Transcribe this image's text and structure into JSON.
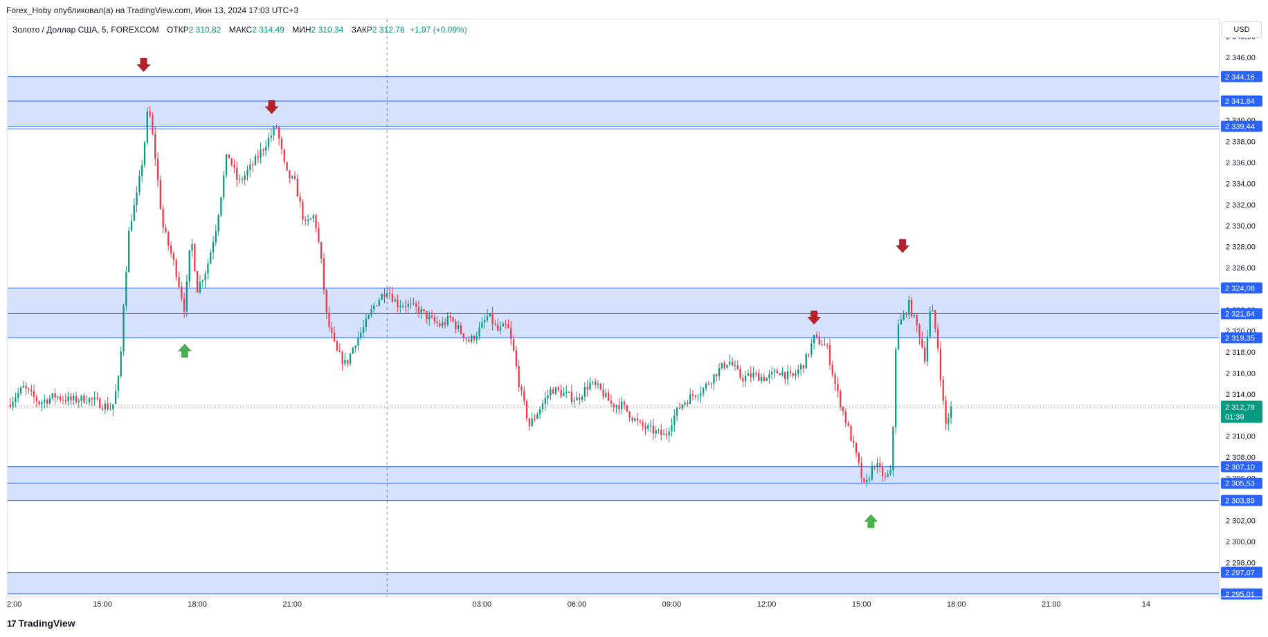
{
  "header": {
    "publisher_line": "Forex_Hoby опубликовал(а) на TradingView.com, Июн 13, 2024 17:03 UTC+3"
  },
  "legend": {
    "symbol": "Золото / Доллар США, 5, FOREXCOM",
    "open_label": "ОТКР",
    "open_value": "2 310,82",
    "high_label": "МАКС",
    "high_value": "2 314,49",
    "low_label": "МИН",
    "low_value": "2 310,34",
    "close_label": "ЗАКР",
    "close_value": "2 312,78",
    "change": "+1,97 (+0,09%)"
  },
  "price_axis": {
    "currency": "USD",
    "last_price_label": "2 312,78",
    "countdown": "01:39"
  },
  "footer": {
    "brand": "TradingView"
  },
  "colors": {
    "up": "#089981",
    "down": "#f23645",
    "zone_fill": "#d4dffd",
    "level_line": "#2962ff",
    "arrow_down": "#b2202c",
    "arrow_up": "#4caf50"
  },
  "chart_data": {
    "type": "candlestick",
    "symbol": "XAUUSD",
    "interval": "5",
    "y_ticks": [
      "2 348,00",
      "2 346,00",
      "2 340,00",
      "2 338,00",
      "2 336,00",
      "2 334,00",
      "2 332,00",
      "2 330,00",
      "2 328,00",
      "2 326,00",
      "2 322,00",
      "2 320,00",
      "2 318,00",
      "2 316,00",
      "2 314,00",
      "2 310,00",
      "2 308,00",
      "2 306,00",
      "2 302,00",
      "2 300,00",
      "2 298,00"
    ],
    "y_tick_values": [
      2348,
      2346,
      2340,
      2338,
      2336,
      2334,
      2332,
      2330,
      2328,
      2326,
      2322,
      2320,
      2318,
      2316,
      2314,
      2310,
      2308,
      2306,
      2302,
      2300,
      2298
    ],
    "ylim": [
      2294.8,
      2349.6
    ],
    "x_ticks": [
      "2:00",
      "15:00",
      "18:00",
      "21:00",
      "13",
      "03:00",
      "06:00",
      "09:00",
      "12:00",
      "15:00",
      "18:00",
      "21:00",
      "14"
    ],
    "x_tick_hours": [
      12,
      15,
      18,
      21,
      24,
      27,
      30,
      33,
      36,
      39,
      42,
      45,
      48
    ],
    "xlim": [
      12.0,
      50.3
    ],
    "zones": [
      {
        "top": 2344.16,
        "bottom": 2339.44,
        "top_label": "2 344,16",
        "mid_label": "2 341,84",
        "mid": 2341.84,
        "bottom_label": "2 339,44"
      },
      {
        "top": 2324.08,
        "bottom": 2319.35,
        "top_label": "2 324,08",
        "mid_label": "2 321,64",
        "mid": 2321.64,
        "bottom_label": "2 319,35"
      },
      {
        "top": 2307.1,
        "bottom": 2303.89,
        "top_label": "2 307,10",
        "mid_label": "2 305,53",
        "mid": 2305.53,
        "bottom_label": "2 303,89"
      },
      {
        "top": 2297.07,
        "bottom": 2295.01,
        "top_label": "2 297,07",
        "mid_label": "",
        "mid": null,
        "bottom_label": "2 295,01"
      }
    ],
    "extra_level": 2339.2,
    "last_price": 2312.78,
    "session_divider_hour": 24,
    "anchors": [
      [
        12.0,
        2313.0
      ],
      [
        12.5,
        2314.6
      ],
      [
        13.0,
        2313.2
      ],
      [
        13.5,
        2313.8
      ],
      [
        14.0,
        2313.4
      ],
      [
        14.5,
        2313.6
      ],
      [
        15.0,
        2313.0
      ],
      [
        15.3,
        2312.6
      ],
      [
        15.55,
        2316.0
      ],
      [
        15.65,
        2322.0
      ],
      [
        15.85,
        2330.0
      ],
      [
        16.1,
        2333.0
      ],
      [
        16.3,
        2337.0
      ],
      [
        16.45,
        2341.5
      ],
      [
        16.65,
        2337.0
      ],
      [
        16.9,
        2330.0
      ],
      [
        17.1,
        2328.0
      ],
      [
        17.3,
        2326.0
      ],
      [
        17.6,
        2322.0
      ],
      [
        17.8,
        2329.0
      ],
      [
        18.0,
        2324.0
      ],
      [
        18.3,
        2326.0
      ],
      [
        18.6,
        2330.0
      ],
      [
        18.95,
        2337.0
      ],
      [
        19.3,
        2334.0
      ],
      [
        19.8,
        2336.0
      ],
      [
        20.2,
        2338.0
      ],
      [
        20.5,
        2339.4
      ],
      [
        20.8,
        2335.0
      ],
      [
        21.1,
        2334.0
      ],
      [
        21.4,
        2330.0
      ],
      [
        21.7,
        2331.0
      ],
      [
        21.9,
        2327.0
      ],
      [
        22.1,
        2321.0
      ],
      [
        22.4,
        2318.0
      ],
      [
        22.7,
        2316.8
      ],
      [
        23.0,
        2319.0
      ],
      [
        23.3,
        2320.5
      ],
      [
        23.6,
        2322.5
      ],
      [
        24.0,
        2324.0
      ],
      [
        24.3,
        2322.6
      ],
      [
        24.6,
        2322.5
      ],
      [
        25.0,
        2322.0
      ],
      [
        25.4,
        2321.0
      ],
      [
        25.7,
        2320.5
      ],
      [
        26.0,
        2321.2
      ],
      [
        26.3,
        2320.0
      ],
      [
        26.6,
        2319.0
      ],
      [
        26.9,
        2320.0
      ],
      [
        27.2,
        2321.5
      ],
      [
        27.5,
        2320.0
      ],
      [
        27.8,
        2320.5
      ],
      [
        28.0,
        2318.0
      ],
      [
        28.2,
        2314.5
      ],
      [
        28.5,
        2311.0
      ],
      [
        28.8,
        2312.5
      ],
      [
        29.2,
        2314.5
      ],
      [
        29.6,
        2314.0
      ],
      [
        30.0,
        2313.5
      ],
      [
        30.4,
        2315.0
      ],
      [
        30.7,
        2314.5
      ],
      [
        31.1,
        2313.0
      ],
      [
        31.4,
        2313.0
      ],
      [
        31.7,
        2312.0
      ],
      [
        32.0,
        2311.0
      ],
      [
        32.4,
        2310.5
      ],
      [
        32.8,
        2310.0
      ],
      [
        33.0,
        2311.5
      ],
      [
        33.3,
        2313.0
      ],
      [
        33.7,
        2314.0
      ],
      [
        34.0,
        2314.5
      ],
      [
        34.4,
        2316.0
      ],
      [
        34.8,
        2317.2
      ],
      [
        35.2,
        2315.5
      ],
      [
        35.6,
        2315.8
      ],
      [
        36.0,
        2315.5
      ],
      [
        36.4,
        2316.2
      ],
      [
        36.8,
        2315.5
      ],
      [
        37.2,
        2317.0
      ],
      [
        37.5,
        2319.3
      ],
      [
        37.9,
        2318.5
      ],
      [
        38.2,
        2314.5
      ],
      [
        38.5,
        2311.5
      ],
      [
        38.8,
        2308.5
      ],
      [
        39.1,
        2305.0
      ],
      [
        39.4,
        2307.5
      ],
      [
        39.75,
        2306.0
      ],
      [
        39.95,
        2306.5
      ],
      [
        40.1,
        2320.0
      ],
      [
        40.5,
        2322.5
      ],
      [
        40.8,
        2320.0
      ],
      [
        41.0,
        2317.5
      ],
      [
        41.2,
        2322.5
      ],
      [
        41.4,
        2319.0
      ],
      [
        41.65,
        2311.0
      ],
      [
        41.85,
        2312.78
      ]
    ],
    "annotations": [
      {
        "type": "arrow_down",
        "hour": 16.3,
        "price": 2345.2
      },
      {
        "type": "arrow_down",
        "hour": 20.35,
        "price": 2341.2
      },
      {
        "type": "arrow_up",
        "hour": 17.6,
        "price": 2318.2
      },
      {
        "type": "arrow_down",
        "hour": 37.5,
        "price": 2321.2
      },
      {
        "type": "arrow_down",
        "hour": 40.3,
        "price": 2328.0
      },
      {
        "type": "arrow_up",
        "hour": 39.3,
        "price": 2302.0
      }
    ]
  }
}
